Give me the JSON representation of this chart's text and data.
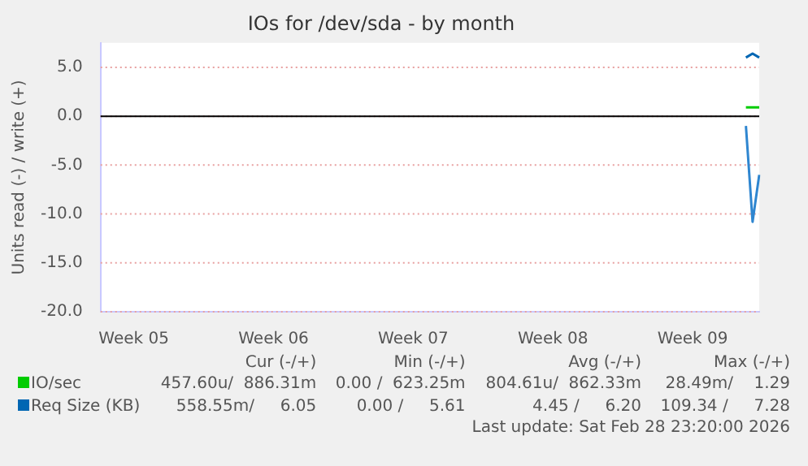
{
  "chart_data": {
    "type": "line",
    "title": "IOs for /dev/sda - by month",
    "ylabel": "Units read (-) / write (+)",
    "categories": [
      null,
      null,
      null,
      null,
      null,
      "Week 05",
      null,
      null,
      null,
      null,
      null,
      null,
      null,
      null,
      null,
      null,
      null,
      null,
      null,
      null,
      null,
      null,
      null,
      null,
      null,
      null,
      "Week 06",
      null,
      null,
      null,
      null,
      null,
      null,
      null,
      null,
      null,
      null,
      null,
      null,
      null,
      null,
      null,
      null,
      null,
      null,
      null,
      null,
      "Week 07",
      null,
      null,
      null,
      null,
      null,
      null,
      null,
      null,
      null,
      null,
      null,
      null,
      null,
      null,
      null,
      null,
      null,
      null,
      null,
      null,
      "Week 08",
      null,
      null,
      null,
      null,
      null,
      null,
      null,
      null,
      null,
      null,
      null,
      null,
      null,
      null,
      null,
      null,
      null,
      null,
      null,
      null,
      "Week 09",
      null,
      null,
      null,
      null,
      null,
      null,
      null,
      null,
      null,
      null
    ],
    "ylim": [
      -20,
      7.5
    ],
    "yticks": [
      {
        "value": -20,
        "label": "-20.0"
      },
      {
        "value": -15,
        "label": "-15.0"
      },
      {
        "value": -10,
        "label": "-10.0"
      },
      {
        "value": -5,
        "label": "-5.0"
      },
      {
        "value": 0,
        "label": "0.0"
      },
      {
        "value": 5,
        "label": "5.0"
      }
    ],
    "grid": "y",
    "legend": "bottom left",
    "ref_lines": [
      {
        "axis": "y",
        "value": 0,
        "color": "#000000"
      }
    ],
    "series": [
      {
        "name": "IO/sec",
        "color": "#00cc00",
        "values": [
          null,
          null,
          null,
          null,
          null,
          null,
          null,
          null,
          null,
          null,
          null,
          null,
          null,
          null,
          null,
          null,
          null,
          null,
          null,
          null,
          null,
          null,
          null,
          null,
          null,
          null,
          null,
          null,
          null,
          null,
          null,
          null,
          null,
          null,
          null,
          null,
          null,
          null,
          null,
          null,
          null,
          null,
          null,
          null,
          null,
          null,
          null,
          null,
          null,
          null,
          null,
          null,
          null,
          null,
          null,
          null,
          null,
          null,
          null,
          null,
          null,
          null,
          null,
          null,
          null,
          null,
          null,
          null,
          null,
          null,
          null,
          null,
          null,
          null,
          null,
          null,
          null,
          null,
          null,
          null,
          null,
          null,
          null,
          null,
          null,
          null,
          null,
          null,
          null,
          null,
          null,
          null,
          null,
          null,
          null,
          null,
          null,
          0.9,
          0.9,
          0.9
        ]
      },
      {
        "name": "Req Size (KB)",
        "color": "#0066b3",
        "values": [
          null,
          null,
          null,
          null,
          null,
          null,
          null,
          null,
          null,
          null,
          null,
          null,
          null,
          null,
          null,
          null,
          null,
          null,
          null,
          null,
          null,
          null,
          null,
          null,
          null,
          null,
          null,
          null,
          null,
          null,
          null,
          null,
          null,
          null,
          null,
          null,
          null,
          null,
          null,
          null,
          null,
          null,
          null,
          null,
          null,
          null,
          null,
          null,
          null,
          null,
          null,
          null,
          null,
          null,
          null,
          null,
          null,
          null,
          null,
          null,
          null,
          null,
          null,
          null,
          null,
          null,
          null,
          null,
          null,
          null,
          null,
          null,
          null,
          null,
          null,
          null,
          null,
          null,
          null,
          null,
          null,
          null,
          null,
          null,
          null,
          null,
          null,
          null,
          null,
          null,
          null,
          null,
          null,
          null,
          null,
          null,
          null,
          6.0,
          6.4,
          6.0
        ]
      },
      {
        "color": "#2f86d0",
        "values": [
          null,
          null,
          null,
          null,
          null,
          null,
          null,
          null,
          null,
          null,
          null,
          null,
          null,
          null,
          null,
          null,
          null,
          null,
          null,
          null,
          null,
          null,
          null,
          null,
          null,
          null,
          null,
          null,
          null,
          null,
          null,
          null,
          null,
          null,
          null,
          null,
          null,
          null,
          null,
          null,
          null,
          null,
          null,
          null,
          null,
          null,
          null,
          null,
          null,
          null,
          null,
          null,
          null,
          null,
          null,
          null,
          null,
          null,
          null,
          null,
          null,
          null,
          null,
          null,
          null,
          null,
          null,
          null,
          null,
          null,
          null,
          null,
          null,
          null,
          null,
          null,
          null,
          null,
          null,
          null,
          null,
          null,
          null,
          null,
          null,
          null,
          null,
          null,
          null,
          null,
          null,
          null,
          null,
          null,
          null,
          null,
          null,
          -1.0,
          -10.8,
          -6.0
        ]
      }
    ],
    "annotations": [
      "Cur (-/+)",
      "Min (-/+)",
      "Avg (-/+)",
      "Max (-/+)",
      "457.60u/  886.31m",
      "0.00 /  623.25m",
      "804.61u/  862.33m",
      "28.49m/    1.29",
      "558.55m/     6.05",
      "0.00 /     5.61",
      "4.45 /     6.20",
      "109.34 /     7.28",
      "Last update: Sat Feb 28 23:20:00 2026"
    ]
  }
}
